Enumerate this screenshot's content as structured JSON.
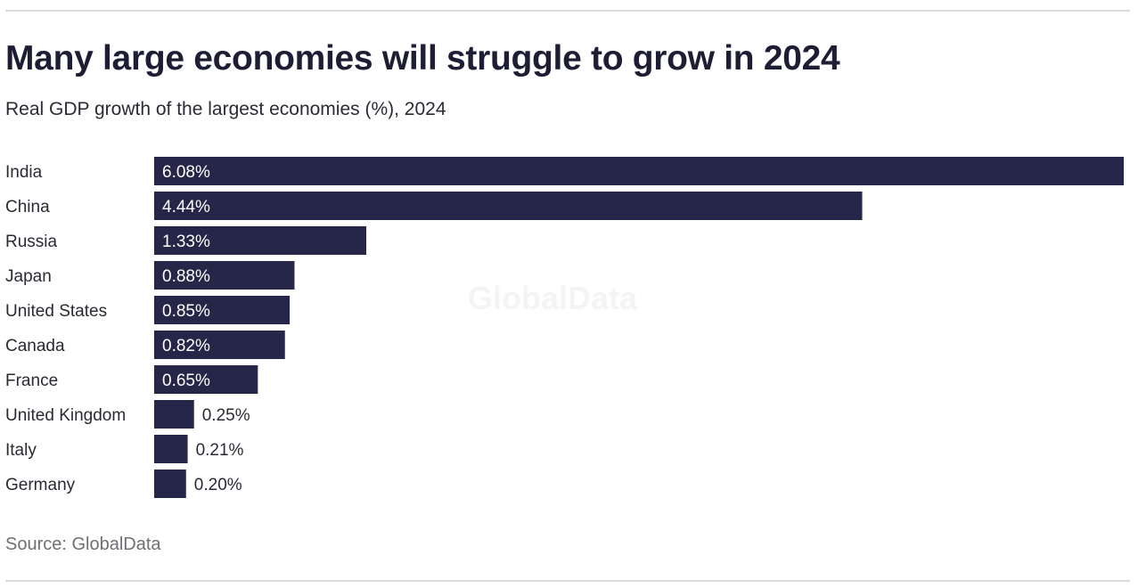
{
  "chart_data": {
    "type": "bar",
    "orientation": "horizontal",
    "title": "Many large economies will struggle to grow in 2024",
    "subtitle": "Real GDP growth of the largest economies (%), 2024",
    "source": "Source: GlobalData",
    "watermark": "GlobalData",
    "categories": [
      "India",
      "China",
      "Russia",
      "Japan",
      "United States",
      "Canada",
      "France",
      "United Kingdom",
      "Italy",
      "Germany"
    ],
    "values": [
      6.08,
      4.44,
      1.33,
      0.88,
      0.85,
      0.82,
      0.65,
      0.25,
      0.21,
      0.2
    ],
    "data_labels": [
      "6.08%",
      "4.44%",
      "1.33%",
      "0.88%",
      "0.85%",
      "0.82%",
      "0.65%",
      "0.25%",
      "0.21%",
      "0.20%"
    ],
    "xlim": [
      0,
      6.08
    ],
    "grid": false,
    "legend": "none",
    "bar_color": "#262748"
  }
}
